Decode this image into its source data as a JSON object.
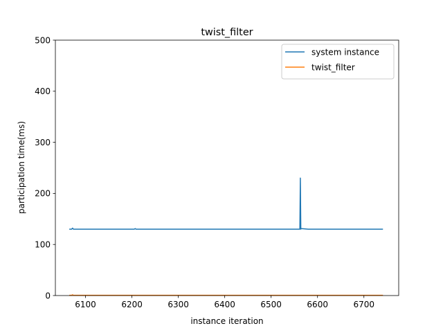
{
  "chart_data": {
    "type": "line",
    "title": "twist_filter",
    "xlabel": "instance iteration",
    "ylabel": "participation time(ms)",
    "xlim": [
      6035,
      6775
    ],
    "ylim": [
      0,
      500
    ],
    "xticks": [
      6100,
      6200,
      6300,
      6400,
      6500,
      6600,
      6700
    ],
    "yticks": [
      0,
      100,
      200,
      300,
      400,
      500
    ],
    "grid": false,
    "legend_position": "top-right",
    "series": [
      {
        "name": "system instance",
        "color": "#1f77b4",
        "x": [
          6066,
          6070,
          6072,
          6074,
          6100,
          6150,
          6205,
          6207,
          6209,
          6250,
          6300,
          6350,
          6400,
          6450,
          6500,
          6550,
          6560,
          6562,
          6563,
          6564,
          6565,
          6580,
          6620,
          6680,
          6740
        ],
        "y": [
          130,
          130,
          132,
          130,
          130,
          130,
          130,
          131,
          130,
          130,
          130,
          130,
          130,
          130,
          130,
          130,
          130,
          130,
          230,
          130,
          131,
          130,
          130,
          130,
          130
        ]
      },
      {
        "name": "twist_filter",
        "color": "#ff7f0e",
        "x": [
          6066,
          6070,
          6072,
          6074,
          6100,
          6200,
          6300,
          6400,
          6500,
          6600,
          6700,
          6740
        ],
        "y": [
          0.5,
          0.5,
          1.5,
          0.5,
          0.5,
          0.5,
          0.5,
          0.5,
          0.5,
          0.5,
          0.5,
          0.5
        ]
      }
    ]
  }
}
